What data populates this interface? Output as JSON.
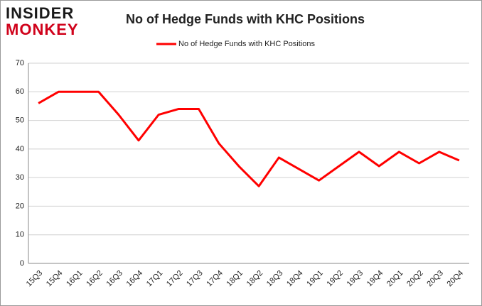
{
  "logo": {
    "line1": "INSIDER",
    "line2": "MONKEY"
  },
  "chart_data": {
    "type": "line",
    "title": "No of Hedge Funds with KHC Positions",
    "categories": [
      "15Q3",
      "15Q4",
      "16Q1",
      "16Q2",
      "16Q3",
      "16Q4",
      "17Q1",
      "17Q2",
      "17Q3",
      "17Q4",
      "18Q1",
      "18Q2",
      "18Q3",
      "18Q4",
      "19Q1",
      "19Q2",
      "19Q3",
      "19Q4",
      "20Q1",
      "20Q2",
      "20Q3",
      "20Q4"
    ],
    "series": [
      {
        "name": "No of Hedge Funds with KHC Positions",
        "color": "#ff0000",
        "values": [
          56,
          60,
          60,
          60,
          52,
          43,
          52,
          54,
          54,
          42,
          34,
          27,
          37,
          33,
          29,
          34,
          39,
          34,
          39,
          35,
          39,
          36
        ]
      }
    ],
    "ylim": [
      0,
      70
    ],
    "yticks": [
      0,
      10,
      20,
      30,
      40,
      50,
      60,
      70
    ],
    "grid": true,
    "legend": "top"
  }
}
